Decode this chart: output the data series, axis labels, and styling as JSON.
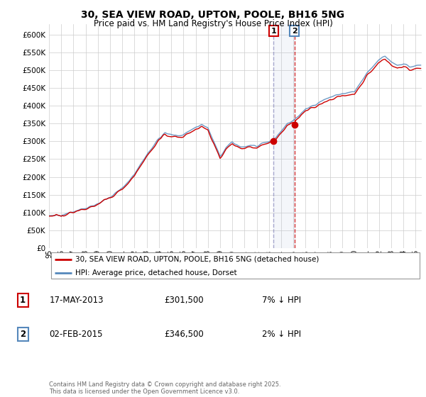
{
  "title": "30, SEA VIEW ROAD, UPTON, POOLE, BH16 5NG",
  "subtitle": "Price paid vs. HM Land Registry's House Price Index (HPI)",
  "legend_label_red": "30, SEA VIEW ROAD, UPTON, POOLE, BH16 5NG (detached house)",
  "legend_label_blue": "HPI: Average price, detached house, Dorset",
  "annotation1_date": "17-MAY-2013",
  "annotation1_price": "£301,500",
  "annotation1_note": "7% ↓ HPI",
  "annotation2_date": "02-FEB-2015",
  "annotation2_price": "£346,500",
  "annotation2_note": "2% ↓ HPI",
  "footer": "Contains HM Land Registry data © Crown copyright and database right 2025.\nThis data is licensed under the Open Government Licence v3.0.",
  "red_color": "#cc0000",
  "blue_color": "#5588bb",
  "vline1_color": "#8888bb",
  "vline2_color": "#cc0000",
  "span_color": "#aabbdd",
  "ylim": [
    0,
    620000
  ],
  "yticks": [
    0,
    50000,
    100000,
    150000,
    200000,
    250000,
    300000,
    350000,
    400000,
    450000,
    500000,
    550000,
    600000
  ],
  "t1_year": 2013.37,
  "t2_year": 2015.08,
  "t1_price": 301500,
  "t2_price": 346500
}
